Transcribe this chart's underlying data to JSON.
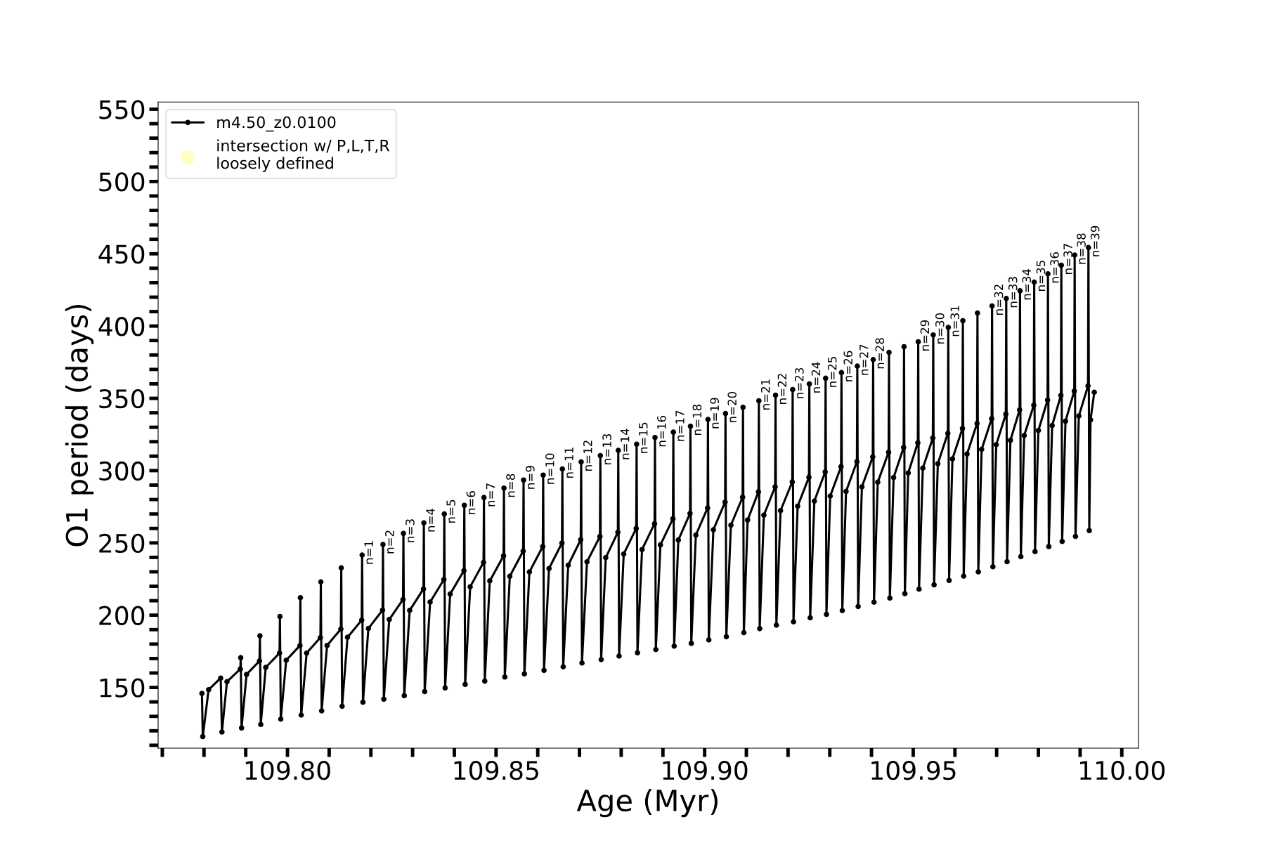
{
  "chart_data": {
    "type": "line",
    "xlabel": "Age (Myr)",
    "ylabel": "O1 period (days)",
    "xlim": [
      109.769,
      110.004
    ],
    "ylim": [
      108,
      555
    ],
    "xticks": [
      {
        "value": 109.77,
        "label": null
      },
      {
        "value": 109.78,
        "label": null
      },
      {
        "value": 109.79,
        "label": null
      },
      {
        "value": 109.8,
        "label": "109.80"
      },
      {
        "value": 109.81,
        "label": null
      },
      {
        "value": 109.82,
        "label": null
      },
      {
        "value": 109.83,
        "label": null
      },
      {
        "value": 109.84,
        "label": null
      },
      {
        "value": 109.85,
        "label": "109.85"
      },
      {
        "value": 109.86,
        "label": null
      },
      {
        "value": 109.87,
        "label": null
      },
      {
        "value": 109.88,
        "label": null
      },
      {
        "value": 109.89,
        "label": null
      },
      {
        "value": 109.9,
        "label": "109.90"
      },
      {
        "value": 109.91,
        "label": null
      },
      {
        "value": 109.92,
        "label": null
      },
      {
        "value": 109.93,
        "label": null
      },
      {
        "value": 109.94,
        "label": null
      },
      {
        "value": 109.95,
        "label": "109.95"
      },
      {
        "value": 109.96,
        "label": null
      },
      {
        "value": 109.97,
        "label": null
      },
      {
        "value": 109.98,
        "label": null
      },
      {
        "value": 109.99,
        "label": null
      },
      {
        "value": 110.0,
        "label": "110.00"
      }
    ],
    "yticks": [
      {
        "value": 110,
        "label": null
      },
      {
        "value": 120,
        "label": null
      },
      {
        "value": 130,
        "label": null
      },
      {
        "value": 140,
        "label": null
      },
      150,
      {
        "value": 160,
        "label": null
      },
      {
        "value": 170,
        "label": null
      },
      {
        "value": 180,
        "label": null
      },
      {
        "value": 190,
        "label": null
      },
      200,
      {
        "value": 210,
        "label": null
      },
      {
        "value": 220,
        "label": null
      },
      {
        "value": 230,
        "label": null
      },
      {
        "value": 240,
        "label": null
      },
      250,
      {
        "value": 260,
        "label": null
      },
      {
        "value": 270,
        "label": null
      },
      {
        "value": 280,
        "label": null
      },
      {
        "value": 290,
        "label": null
      },
      300,
      {
        "value": 310,
        "label": null
      },
      {
        "value": 320,
        "label": null
      },
      {
        "value": 330,
        "label": null
      },
      {
        "value": 340,
        "label": null
      },
      350,
      {
        "value": 360,
        "label": null
      },
      {
        "value": 370,
        "label": null
      },
      {
        "value": 380,
        "label": null
      },
      {
        "value": 390,
        "label": null
      },
      400,
      {
        "value": 410,
        "label": null
      },
      {
        "value": 420,
        "label": null
      },
      {
        "value": 430,
        "label": null
      },
      {
        "value": 440,
        "label": null
      },
      450,
      {
        "value": 460,
        "label": null
      },
      {
        "value": 470,
        "label": null
      },
      {
        "value": 480,
        "label": null
      },
      {
        "value": 490,
        "label": null
      },
      500,
      {
        "value": 510,
        "label": null
      },
      {
        "value": 520,
        "label": null
      },
      {
        "value": 530,
        "label": null
      },
      {
        "value": 540,
        "label": null
      },
      550
    ],
    "grid": false,
    "legend": "top left",
    "marker": "circle",
    "line_style": "solid",
    "series": [
      {
        "name": "m4.50_z0.0100",
        "color": "#000000",
        "x": [
          109.7795,
          109.7797,
          109.7811,
          109.784,
          109.7843,
          109.7855,
          109.7887,
          109.7888,
          109.789,
          109.7902,
          109.7933,
          109.7934,
          109.7936,
          109.7948,
          109.7981,
          109.7982,
          109.7984,
          109.7997,
          109.803,
          109.8031,
          109.8033,
          109.8046,
          109.8079,
          109.808,
          109.8082,
          109.8095,
          109.8128,
          109.8129,
          109.8131,
          109.8144,
          109.8178,
          109.8179,
          109.8181,
          109.8194,
          109.8228,
          109.8229,
          109.8231,
          109.8244,
          109.8277,
          109.8278,
          109.828,
          109.8293,
          109.8326,
          109.8327,
          109.8329,
          109.8342,
          109.8375,
          109.8376,
          109.8378,
          109.839,
          109.8423,
          109.8424,
          109.8426,
          109.8438,
          109.847,
          109.8471,
          109.8473,
          109.8485,
          109.8518,
          109.8519,
          109.8521,
          109.8533,
          109.8565,
          109.8566,
          109.8568,
          109.858,
          109.8612,
          109.8613,
          109.8615,
          109.8627,
          109.8658,
          109.8659,
          109.8661,
          109.8673,
          109.8703,
          109.8704,
          109.8706,
          109.8718,
          109.8749,
          109.875,
          109.8752,
          109.8763,
          109.8792,
          109.8793,
          109.8795,
          109.8806,
          109.8836,
          109.8837,
          109.8839,
          109.885,
          109.888,
          109.8881,
          109.8883,
          109.8894,
          109.8924,
          109.8925,
          109.8927,
          109.8937,
          109.8965,
          109.8966,
          109.8968,
          109.8979,
          109.9007,
          109.9008,
          109.901,
          109.9021,
          109.9049,
          109.905,
          109.9052,
          109.9063,
          109.9091,
          109.9092,
          109.9094,
          109.9103,
          109.9129,
          109.913,
          109.9132,
          109.9142,
          109.9169,
          109.917,
          109.9172,
          109.9182,
          109.921,
          109.9211,
          109.9213,
          109.9223,
          109.925,
          109.9251,
          109.9253,
          109.9263,
          109.9289,
          109.929,
          109.9292,
          109.9301,
          109.9327,
          109.9328,
          109.933,
          109.9339,
          109.9365,
          109.9366,
          109.9368,
          109.9377,
          109.9403,
          109.9404,
          109.9406,
          109.9415,
          109.9441,
          109.9442,
          109.9444,
          109.9453,
          109.9477,
          109.9478,
          109.948,
          109.9488,
          109.9511,
          109.9512,
          109.9514,
          109.9523,
          109.9547,
          109.9548,
          109.955,
          109.9559,
          109.9583,
          109.9584,
          109.9586,
          109.9594,
          109.9618,
          109.9619,
          109.9621,
          109.9629,
          109.9653,
          109.9654,
          109.9656,
          109.9664,
          109.9688,
          109.9689,
          109.9691,
          109.9699,
          109.9722,
          109.9723,
          109.9725,
          109.9733,
          109.9755,
          109.9756,
          109.9758,
          109.9766,
          109.9789,
          109.979,
          109.9792,
          109.98,
          109.9822,
          109.9823,
          109.9825,
          109.9833,
          109.9854,
          109.9855,
          109.9857,
          109.9865,
          109.9886,
          109.9887,
          109.9889,
          109.9897,
          109.9919,
          109.992,
          109.9922,
          109.9925,
          109.9934
        ],
        "values": [
          145.9,
          116.0,
          148.4,
          156.5,
          119.2,
          154.0,
          162.7,
          170.6,
          122.0,
          159.0,
          168.3,
          185.7,
          124.4,
          163.9,
          173.8,
          199.1,
          128.1,
          168.8,
          179.0,
          212.1,
          130.9,
          173.8,
          184.5,
          223.0,
          133.8,
          179.1,
          190.4,
          232.7,
          137.0,
          184.7,
          196.6,
          241.6,
          139.8,
          190.8,
          203.5,
          248.9,
          141.9,
          197.0,
          210.8,
          256.6,
          144.3,
          203.3,
          218.1,
          263.9,
          147.1,
          209.1,
          224.6,
          270.0,
          149.7,
          214.6,
          230.8,
          276.0,
          152.1,
          219.6,
          236.5,
          281.4,
          154.4,
          223.7,
          241.0,
          287.9,
          157.2,
          226.9,
          244.3,
          293.5,
          159.4,
          229.9,
          247.5,
          296.9,
          161.8,
          232.3,
          249.9,
          301.1,
          164.3,
          234.6,
          252.2,
          306.0,
          166.9,
          236.9,
          254.4,
          310.4,
          169.3,
          239.8,
          257.4,
          314.0,
          171.7,
          242.3,
          260.0,
          318.3,
          174.0,
          245.4,
          263.3,
          322.9,
          176.2,
          248.6,
          266.7,
          326.6,
          178.6,
          252.0,
          270.4,
          330.7,
          180.5,
          255.4,
          274.1,
          335.4,
          182.9,
          259.1,
          278.2,
          339.5,
          185.1,
          262.3,
          281.6,
          343.8,
          187.9,
          265.8,
          285.3,
          348.3,
          190.7,
          269.2,
          288.8,
          352.2,
          193.1,
          272.4,
          292.2,
          356.1,
          195.4,
          275.4,
          295.4,
          360.0,
          198.2,
          278.9,
          299.1,
          363.9,
          200.6,
          282.4,
          302.8,
          367.8,
          203.2,
          285.6,
          306.2,
          372.3,
          206.0,
          288.8,
          309.5,
          376.8,
          209.0,
          292.0,
          312.7,
          381.8,
          211.8,
          295.2,
          316.0,
          385.7,
          214.9,
          298.4,
          319.3,
          389.1,
          218.0,
          301.7,
          322.6,
          393.9,
          221.0,
          304.8,
          325.8,
          399.1,
          224.0,
          308.1,
          329.1,
          403.7,
          227.0,
          311.5,
          332.6,
          409.0,
          230.0,
          314.7,
          335.9,
          413.9,
          233.5,
          318.0,
          339.1,
          419.1,
          237.0,
          321.0,
          342.0,
          424.4,
          240.5,
          324.3,
          345.3,
          430.4,
          244.0,
          327.8,
          348.8,
          436.1,
          247.5,
          331.2,
          352.1,
          442.1,
          251.0,
          334.2,
          355.0,
          449.1,
          254.5,
          337.8,
          358.6,
          454.3,
          258.5,
          335.1,
          354.2
        ]
      },
      {
        "name": "intersection w/ P,L,T,R\nloosely defined",
        "type": "scatter",
        "color": "#ffffb3"
      }
    ],
    "annotations": [
      {
        "text": "n=1",
        "x": 109.8179,
        "y": 241.6
      },
      {
        "text": "n=2",
        "x": 109.8229,
        "y": 248.9
      },
      {
        "text": "n=3",
        "x": 109.8278,
        "y": 256.6
      },
      {
        "text": "n=4",
        "x": 109.8327,
        "y": 263.9
      },
      {
        "text": "n=5",
        "x": 109.8376,
        "y": 270.0
      },
      {
        "text": "n=6",
        "x": 109.8424,
        "y": 276.0
      },
      {
        "text": "n=7",
        "x": 109.8471,
        "y": 281.4
      },
      {
        "text": "n=8",
        "x": 109.8519,
        "y": 287.9
      },
      {
        "text": "n=9",
        "x": 109.8566,
        "y": 293.5
      },
      {
        "text": "n=10",
        "x": 109.8613,
        "y": 296.9
      },
      {
        "text": "n=11",
        "x": 109.8659,
        "y": 301.1
      },
      {
        "text": "n=12",
        "x": 109.8704,
        "y": 306.0
      },
      {
        "text": "n=13",
        "x": 109.875,
        "y": 310.4
      },
      {
        "text": "n=14",
        "x": 109.8793,
        "y": 314.0
      },
      {
        "text": "n=15",
        "x": 109.8837,
        "y": 318.3
      },
      {
        "text": "n=16",
        "x": 109.8881,
        "y": 322.9
      },
      {
        "text": "n=17",
        "x": 109.8925,
        "y": 326.6
      },
      {
        "text": "n=18",
        "x": 109.8966,
        "y": 330.7
      },
      {
        "text": "n=19",
        "x": 109.9008,
        "y": 335.4
      },
      {
        "text": "n=20",
        "x": 109.905,
        "y": 339.5
      },
      {
        "text": "n=21",
        "x": 109.913,
        "y": 348.3
      },
      {
        "text": "n=22",
        "x": 109.917,
        "y": 352.2
      },
      {
        "text": "n=23",
        "x": 109.9211,
        "y": 356.1
      },
      {
        "text": "n=24",
        "x": 109.9251,
        "y": 360.0
      },
      {
        "text": "n=25",
        "x": 109.929,
        "y": 363.9
      },
      {
        "text": "n=26",
        "x": 109.9328,
        "y": 367.8
      },
      {
        "text": "n=27",
        "x": 109.9366,
        "y": 372.3
      },
      {
        "text": "n=28",
        "x": 109.9404,
        "y": 376.8
      },
      {
        "text": "n=29",
        "x": 109.9512,
        "y": 389.1
      },
      {
        "text": "n=30",
        "x": 109.9548,
        "y": 393.9
      },
      {
        "text": "n=31",
        "x": 109.9584,
        "y": 399.1
      },
      {
        "text": "n=32",
        "x": 109.9689,
        "y": 413.9
      },
      {
        "text": "n=33",
        "x": 109.9723,
        "y": 419.1
      },
      {
        "text": "n=34",
        "x": 109.9756,
        "y": 424.4
      },
      {
        "text": "n=35",
        "x": 109.979,
        "y": 430.4
      },
      {
        "text": "n=36",
        "x": 109.9823,
        "y": 436.1
      },
      {
        "text": "n=37",
        "x": 109.9855,
        "y": 442.1
      },
      {
        "text": "n=38",
        "x": 109.9887,
        "y": 449.1
      },
      {
        "text": "n=39",
        "x": 109.992,
        "y": 454.3
      }
    ]
  }
}
